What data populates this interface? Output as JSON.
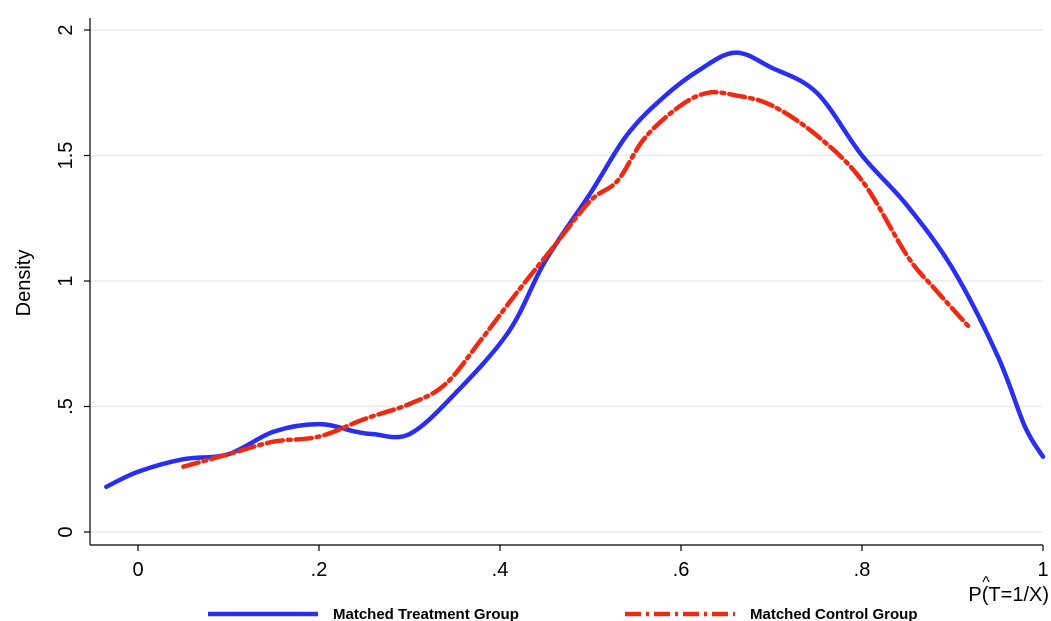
{
  "chart_data": {
    "type": "line",
    "title": "",
    "xlabel": "P(T=1/X)",
    "xlabel_hat": "^",
    "ylabel": "Density",
    "xlim": [
      -0.035,
      1.0
    ],
    "ylim": [
      0,
      2
    ],
    "xticks": [
      {
        "value": 0,
        "label": "0"
      },
      {
        "value": 0.2,
        "label": ".2"
      },
      {
        "value": 0.4,
        "label": ".4"
      },
      {
        "value": 0.6,
        "label": ".6"
      },
      {
        "value": 0.8,
        "label": ".8"
      },
      {
        "value": 1,
        "label": "1"
      }
    ],
    "yticks": [
      {
        "value": 0,
        "label": "0"
      },
      {
        "value": 0.5,
        "label": ".5"
      },
      {
        "value": 1,
        "label": "1"
      },
      {
        "value": 1.5,
        "label": "1.5"
      },
      {
        "value": 2,
        "label": "2"
      }
    ],
    "grid": true,
    "legend_position": "bottom",
    "series": [
      {
        "name": "Matched Treatment Group",
        "color": "#2a2ef0",
        "style": "solid",
        "x": [
          -0.035,
          0.0,
          0.05,
          0.1,
          0.15,
          0.2,
          0.24,
          0.26,
          0.3,
          0.35,
          0.41,
          0.45,
          0.5,
          0.54,
          0.58,
          0.62,
          0.66,
          0.7,
          0.75,
          0.8,
          0.85,
          0.9,
          0.95,
          0.98,
          1.0
        ],
        "y": [
          0.18,
          0.24,
          0.29,
          0.31,
          0.4,
          0.43,
          0.4,
          0.39,
          0.39,
          0.55,
          0.8,
          1.08,
          1.35,
          1.58,
          1.73,
          1.84,
          1.91,
          1.85,
          1.75,
          1.5,
          1.3,
          1.05,
          0.7,
          0.42,
          0.3
        ]
      },
      {
        "name": "Matched Control Group",
        "color": "#ee2a12",
        "style": "dash-dot",
        "x": [
          0.05,
          0.1,
          0.15,
          0.2,
          0.25,
          0.3,
          0.34,
          0.38,
          0.42,
          0.46,
          0.5,
          0.53,
          0.56,
          0.6,
          0.63,
          0.66,
          0.7,
          0.75,
          0.8,
          0.85,
          0.88,
          0.92
        ],
        "y": [
          0.26,
          0.31,
          0.36,
          0.38,
          0.45,
          0.51,
          0.59,
          0.77,
          0.96,
          1.14,
          1.32,
          1.4,
          1.57,
          1.7,
          1.75,
          1.74,
          1.7,
          1.58,
          1.4,
          1.1,
          0.97,
          0.81
        ]
      }
    ]
  }
}
